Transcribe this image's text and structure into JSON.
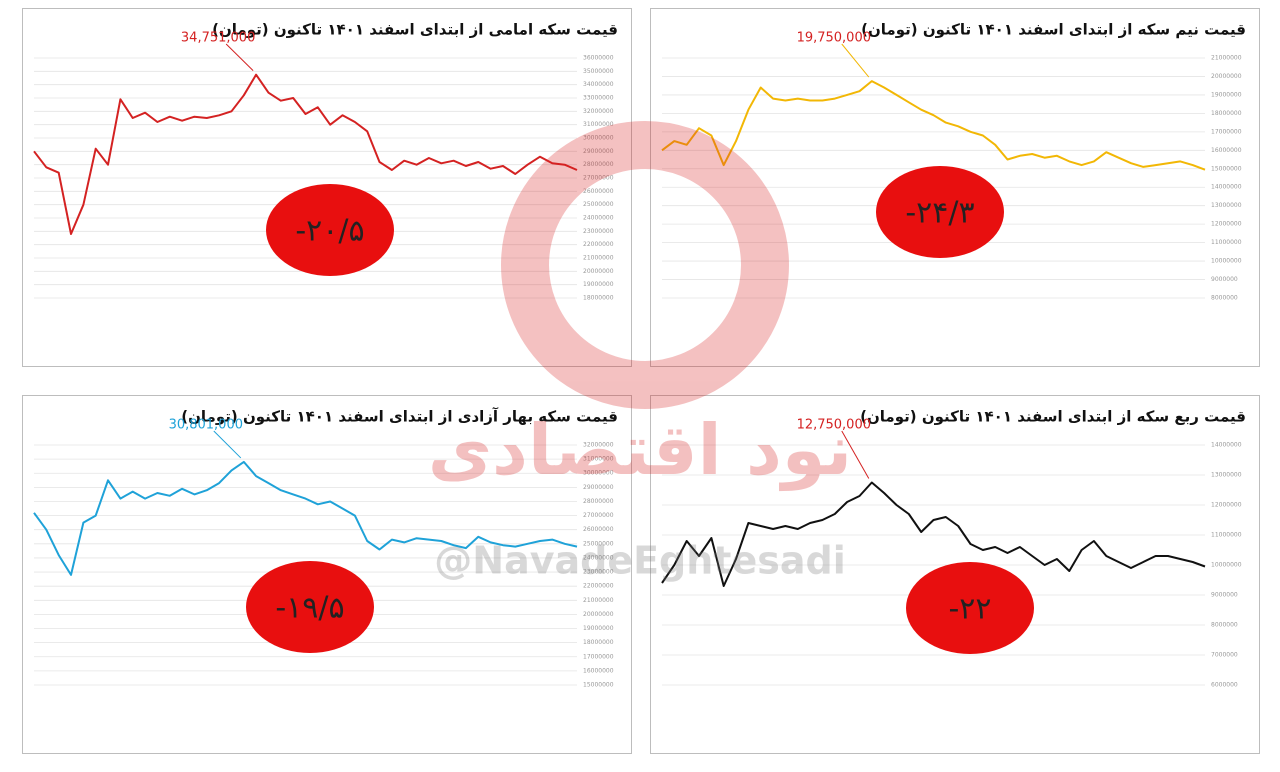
{
  "chart_data": [
    {
      "type": "line",
      "title": "قیمت سکه امامی از ابتدای اسفند ۱۴۰۱ تاکنون (تومان)",
      "color": "#d42222",
      "values": [
        29000000,
        27800000,
        27400000,
        22800000,
        25000000,
        29200000,
        28000000,
        32900000,
        31500000,
        31900000,
        31200000,
        31600000,
        31300000,
        31600000,
        31500000,
        31700000,
        32000000,
        33200000,
        34751000,
        33400000,
        32800000,
        33000000,
        31800000,
        32300000,
        31000000,
        31700000,
        31200000,
        30500000,
        28200000,
        27600000,
        28300000,
        28000000,
        28500000,
        28100000,
        28300000,
        27900000,
        28200000,
        27700000,
        27900000,
        27300000,
        28000000,
        28600000,
        28100000,
        28000000,
        27600000
      ],
      "peak_label": "34,751,000",
      "change_label": "-۲۰/۵",
      "ylim": [
        18000000,
        36000000
      ],
      "yticks": [
        18000000,
        19000000,
        20000000,
        21000000,
        22000000,
        23000000,
        24000000,
        25000000,
        26000000,
        27000000,
        28000000,
        29000000,
        30000000,
        31000000,
        32000000,
        33000000,
        34000000,
        35000000,
        36000000
      ],
      "grid": true
    },
    {
      "type": "line",
      "title": "قیمت نیم سکه از ابتدای اسفند ۱۴۰۱ تاکنون (تومان)",
      "color": "#f2b705",
      "values": [
        16000000,
        16500000,
        16300000,
        17200000,
        16800000,
        15200000,
        16500000,
        18200000,
        19400000,
        18800000,
        18700000,
        18800000,
        18700000,
        18700000,
        18800000,
        19000000,
        19200000,
        19750000,
        19400000,
        19000000,
        18600000,
        18200000,
        17900000,
        17500000,
        17300000,
        17000000,
        16800000,
        16300000,
        15500000,
        15700000,
        15800000,
        15600000,
        15700000,
        15400000,
        15200000,
        15400000,
        15900000,
        15600000,
        15300000,
        15100000,
        15200000,
        15300000,
        15400000,
        15200000,
        14950000
      ],
      "peak_label": "19,750,000",
      "change_label": "-۲۴/۳",
      "ylim": [
        8000000,
        21000000
      ],
      "yticks": [
        8000000,
        9000000,
        10000000,
        11000000,
        12000000,
        13000000,
        14000000,
        15000000,
        16000000,
        17000000,
        18000000,
        19000000,
        20000000,
        21000000
      ],
      "grid": true
    },
    {
      "type": "line",
      "title": "قیمت سکه بهار آزادی از ابتدای اسفند ۱۴۰۱ تاکنون (تومان)",
      "color": "#1fa2d8",
      "values": [
        27200000,
        26000000,
        24200000,
        22800000,
        26500000,
        27000000,
        29500000,
        28200000,
        28700000,
        28200000,
        28600000,
        28400000,
        28900000,
        28500000,
        28800000,
        29300000,
        30200000,
        30801000,
        29800000,
        29300000,
        28800000,
        28500000,
        28200000,
        27800000,
        28000000,
        27500000,
        27000000,
        25200000,
        24600000,
        25300000,
        25100000,
        25400000,
        25300000,
        25200000,
        24900000,
        24700000,
        25500000,
        25100000,
        24900000,
        24800000,
        25000000,
        25200000,
        25300000,
        25000000,
        24800000
      ],
      "peak_label": "30,801,000",
      "change_label": "-۱۹/۵",
      "ylim": [
        15000000,
        32000000
      ],
      "yticks": [
        15000000,
        16000000,
        17000000,
        18000000,
        19000000,
        20000000,
        21000000,
        22000000,
        23000000,
        24000000,
        25000000,
        26000000,
        27000000,
        28000000,
        29000000,
        30000000,
        31000000,
        32000000
      ],
      "grid": true
    },
    {
      "type": "line",
      "title": "قیمت ربع سکه از ابتدای اسفند ۱۴۰۱ تاکنون (تومان)",
      "color": "#111111",
      "values": [
        9400000,
        10000000,
        10800000,
        10300000,
        10900000,
        9300000,
        10200000,
        11400000,
        11300000,
        11200000,
        11300000,
        11200000,
        11400000,
        11500000,
        11700000,
        12100000,
        12300000,
        12750000,
        12400000,
        12000000,
        11700000,
        11100000,
        11500000,
        11600000,
        11300000,
        10700000,
        10500000,
        10600000,
        10400000,
        10600000,
        10300000,
        10000000,
        10200000,
        9800000,
        10500000,
        10800000,
        10300000,
        10100000,
        9900000,
        10100000,
        10300000,
        10300000,
        10200000,
        10100000,
        9950000
      ],
      "peak_label": "12,750,000",
      "change_label": "-۲۲",
      "ylim": [
        6000000,
        14000000
      ],
      "yticks": [
        6000000,
        7000000,
        8000000,
        9000000,
        10000000,
        11000000,
        12000000,
        13000000,
        14000000
      ],
      "grid": true
    }
  ],
  "watermark": {
    "logo_text": "نود اقتصادی",
    "handle": "@NavadeEghtesadi"
  }
}
